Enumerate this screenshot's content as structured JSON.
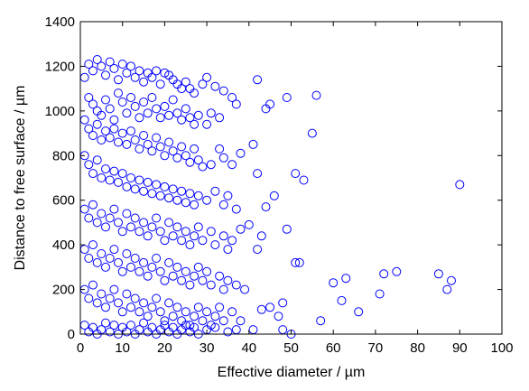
{
  "chart_data": {
    "type": "scatter",
    "title": "",
    "xlabel": "Effective diameter / µm",
    "ylabel": "Distance to free surface / µm",
    "xlim": [
      0,
      100
    ],
    "ylim": [
      0,
      1400
    ],
    "xticks": [
      0,
      10,
      20,
      30,
      40,
      50,
      60,
      70,
      80,
      90,
      100
    ],
    "yticks": [
      0,
      200,
      400,
      600,
      800,
      1000,
      1200,
      1400
    ],
    "grid": false,
    "legend": "none",
    "marker": "open-circle",
    "color": "#0000ff",
    "series": [
      {
        "points": [
          [
            1,
            1150
          ],
          [
            2,
            1210
          ],
          [
            3,
            1180
          ],
          [
            4,
            1230
          ],
          [
            5,
            1200
          ],
          [
            6,
            1160
          ],
          [
            7,
            1220
          ],
          [
            8,
            1190
          ],
          [
            9,
            1140
          ],
          [
            10,
            1210
          ],
          [
            11,
            1170
          ],
          [
            12,
            1200
          ],
          [
            13,
            1150
          ],
          [
            14,
            1180
          ],
          [
            15,
            1130
          ],
          [
            16,
            1170
          ],
          [
            17,
            1150
          ],
          [
            18,
            1180
          ],
          [
            19,
            1120
          ],
          [
            20,
            1170
          ],
          [
            21,
            1160
          ],
          [
            22,
            1140
          ],
          [
            23,
            1120
          ],
          [
            24,
            1100
          ],
          [
            25,
            1130
          ],
          [
            26,
            1100
          ],
          [
            27,
            1080
          ],
          [
            29,
            1120
          ],
          [
            32,
            1110
          ],
          [
            34,
            1090
          ],
          [
            30,
            1150
          ],
          [
            36,
            1060
          ],
          [
            37,
            1030
          ],
          [
            42,
            1140
          ],
          [
            44,
            1010
          ],
          [
            45,
            1030
          ],
          [
            49,
            1060
          ],
          [
            56,
            1070
          ],
          [
            2,
            1060
          ],
          [
            3,
            1030
          ],
          [
            4,
            1000
          ],
          [
            5,
            980
          ],
          [
            6,
            1050
          ],
          [
            7,
            1010
          ],
          [
            8,
            960
          ],
          [
            9,
            1080
          ],
          [
            10,
            1040
          ],
          [
            11,
            990
          ],
          [
            12,
            1060
          ],
          [
            13,
            1020
          ],
          [
            14,
            970
          ],
          [
            15,
            1040
          ],
          [
            16,
            990
          ],
          [
            17,
            1060
          ],
          [
            18,
            1010
          ],
          [
            19,
            970
          ],
          [
            20,
            1020
          ],
          [
            21,
            980
          ],
          [
            22,
            1050
          ],
          [
            23,
            990
          ],
          [
            24,
            960
          ],
          [
            25,
            1010
          ],
          [
            26,
            970
          ],
          [
            27,
            940
          ],
          [
            28,
            980
          ],
          [
            30,
            940
          ],
          [
            31,
            990
          ],
          [
            33,
            970
          ],
          [
            1,
            960
          ],
          [
            2,
            920
          ],
          [
            3,
            890
          ],
          [
            4,
            940
          ],
          [
            5,
            870
          ],
          [
            6,
            910
          ],
          [
            7,
            880
          ],
          [
            8,
            920
          ],
          [
            9,
            860
          ],
          [
            10,
            900
          ],
          [
            11,
            850
          ],
          [
            12,
            910
          ],
          [
            13,
            870
          ],
          [
            14,
            830
          ],
          [
            15,
            890
          ],
          [
            16,
            850
          ],
          [
            17,
            820
          ],
          [
            18,
            880
          ],
          [
            19,
            840
          ],
          [
            20,
            800
          ],
          [
            21,
            860
          ],
          [
            22,
            820
          ],
          [
            23,
            790
          ],
          [
            24,
            840
          ],
          [
            25,
            800
          ],
          [
            26,
            770
          ],
          [
            27,
            830
          ],
          [
            28,
            780
          ],
          [
            29,
            750
          ],
          [
            31,
            760
          ],
          [
            33,
            830
          ],
          [
            34,
            790
          ],
          [
            36,
            760
          ],
          [
            38,
            810
          ],
          [
            41,
            850
          ],
          [
            42,
            720
          ],
          [
            51,
            720
          ],
          [
            53,
            690
          ],
          [
            55,
            900
          ],
          [
            1,
            800
          ],
          [
            2,
            760
          ],
          [
            3,
            720
          ],
          [
            4,
            780
          ],
          [
            5,
            700
          ],
          [
            6,
            740
          ],
          [
            7,
            690
          ],
          [
            8,
            730
          ],
          [
            9,
            680
          ],
          [
            10,
            720
          ],
          [
            11,
            660
          ],
          [
            12,
            700
          ],
          [
            13,
            650
          ],
          [
            14,
            690
          ],
          [
            15,
            640
          ],
          [
            16,
            680
          ],
          [
            17,
            630
          ],
          [
            18,
            670
          ],
          [
            19,
            620
          ],
          [
            20,
            660
          ],
          [
            21,
            610
          ],
          [
            22,
            650
          ],
          [
            23,
            600
          ],
          [
            24,
            640
          ],
          [
            25,
            590
          ],
          [
            26,
            630
          ],
          [
            27,
            580
          ],
          [
            28,
            620
          ],
          [
            30,
            600
          ],
          [
            32,
            640
          ],
          [
            34,
            580
          ],
          [
            35,
            620
          ],
          [
            37,
            560
          ],
          [
            44,
            570
          ],
          [
            46,
            620
          ],
          [
            90,
            670
          ],
          [
            1,
            560
          ],
          [
            2,
            520
          ],
          [
            3,
            580
          ],
          [
            4,
            500
          ],
          [
            5,
            540
          ],
          [
            6,
            480
          ],
          [
            7,
            520
          ],
          [
            8,
            560
          ],
          [
            9,
            500
          ],
          [
            10,
            460
          ],
          [
            11,
            540
          ],
          [
            12,
            480
          ],
          [
            13,
            520
          ],
          [
            14,
            460
          ],
          [
            15,
            500
          ],
          [
            16,
            440
          ],
          [
            17,
            480
          ],
          [
            18,
            520
          ],
          [
            19,
            460
          ],
          [
            20,
            420
          ],
          [
            21,
            500
          ],
          [
            22,
            440
          ],
          [
            23,
            480
          ],
          [
            24,
            420
          ],
          [
            25,
            460
          ],
          [
            26,
            400
          ],
          [
            27,
            440
          ],
          [
            28,
            480
          ],
          [
            29,
            420
          ],
          [
            31,
            460
          ],
          [
            32,
            400
          ],
          [
            34,
            440
          ],
          [
            35,
            380
          ],
          [
            36,
            420
          ],
          [
            38,
            470
          ],
          [
            40,
            490
          ],
          [
            42,
            380
          ],
          [
            43,
            440
          ],
          [
            49,
            470
          ],
          [
            51,
            320
          ],
          [
            52,
            320
          ],
          [
            1,
            380
          ],
          [
            2,
            340
          ],
          [
            3,
            400
          ],
          [
            4,
            320
          ],
          [
            5,
            360
          ],
          [
            6,
            300
          ],
          [
            7,
            340
          ],
          [
            8,
            380
          ],
          [
            9,
            320
          ],
          [
            10,
            280
          ],
          [
            11,
            360
          ],
          [
            12,
            300
          ],
          [
            13,
            340
          ],
          [
            14,
            280
          ],
          [
            15,
            320
          ],
          [
            16,
            260
          ],
          [
            17,
            300
          ],
          [
            18,
            340
          ],
          [
            19,
            280
          ],
          [
            20,
            240
          ],
          [
            21,
            320
          ],
          [
            22,
            260
          ],
          [
            23,
            300
          ],
          [
            24,
            240
          ],
          [
            25,
            280
          ],
          [
            26,
            220
          ],
          [
            27,
            260
          ],
          [
            28,
            300
          ],
          [
            29,
            240
          ],
          [
            30,
            280
          ],
          [
            31,
            220
          ],
          [
            33,
            260
          ],
          [
            34,
            200
          ],
          [
            35,
            240
          ],
          [
            37,
            220
          ],
          [
            39,
            200
          ],
          [
            60,
            230
          ],
          [
            62,
            150
          ],
          [
            63,
            250
          ],
          [
            66,
            100
          ],
          [
            71,
            180
          ],
          [
            72,
            270
          ],
          [
            75,
            280
          ],
          [
            85,
            270
          ],
          [
            87,
            200
          ],
          [
            88,
            240
          ],
          [
            1,
            200
          ],
          [
            2,
            160
          ],
          [
            3,
            220
          ],
          [
            4,
            140
          ],
          [
            5,
            180
          ],
          [
            6,
            120
          ],
          [
            7,
            160
          ],
          [
            8,
            200
          ],
          [
            9,
            140
          ],
          [
            10,
            100
          ],
          [
            11,
            180
          ],
          [
            12,
            120
          ],
          [
            13,
            160
          ],
          [
            14,
            100
          ],
          [
            15,
            140
          ],
          [
            16,
            80
          ],
          [
            17,
            120
          ],
          [
            18,
            160
          ],
          [
            19,
            100
          ],
          [
            20,
            60
          ],
          [
            21,
            140
          ],
          [
            22,
            80
          ],
          [
            23,
            120
          ],
          [
            24,
            60
          ],
          [
            25,
            100
          ],
          [
            26,
            40
          ],
          [
            27,
            80
          ],
          [
            28,
            120
          ],
          [
            29,
            60
          ],
          [
            30,
            100
          ],
          [
            31,
            40
          ],
          [
            32,
            80
          ],
          [
            33,
            120
          ],
          [
            34,
            60
          ],
          [
            36,
            100
          ],
          [
            38,
            60
          ],
          [
            43,
            110
          ],
          [
            45,
            120
          ],
          [
            47,
            80
          ],
          [
            48,
            140
          ],
          [
            57,
            60
          ],
          [
            1,
            40
          ],
          [
            2,
            10
          ],
          [
            3,
            30
          ],
          [
            4,
            0
          ],
          [
            5,
            20
          ],
          [
            6,
            50
          ],
          [
            7,
            10
          ],
          [
            8,
            40
          ],
          [
            9,
            0
          ],
          [
            10,
            30
          ],
          [
            11,
            10
          ],
          [
            12,
            40
          ],
          [
            13,
            0
          ],
          [
            14,
            20
          ],
          [
            15,
            50
          ],
          [
            16,
            10
          ],
          [
            17,
            30
          ],
          [
            18,
            0
          ],
          [
            19,
            20
          ],
          [
            20,
            40
          ],
          [
            21,
            10
          ],
          [
            22,
            30
          ],
          [
            23,
            0
          ],
          [
            24,
            20
          ],
          [
            25,
            40
          ],
          [
            26,
            10
          ],
          [
            27,
            30
          ],
          [
            28,
            0
          ],
          [
            30,
            20
          ],
          [
            32,
            30
          ],
          [
            35,
            10
          ],
          [
            37,
            20
          ],
          [
            41,
            20
          ],
          [
            48,
            20
          ],
          [
            50,
            0
          ]
        ]
      }
    ]
  }
}
